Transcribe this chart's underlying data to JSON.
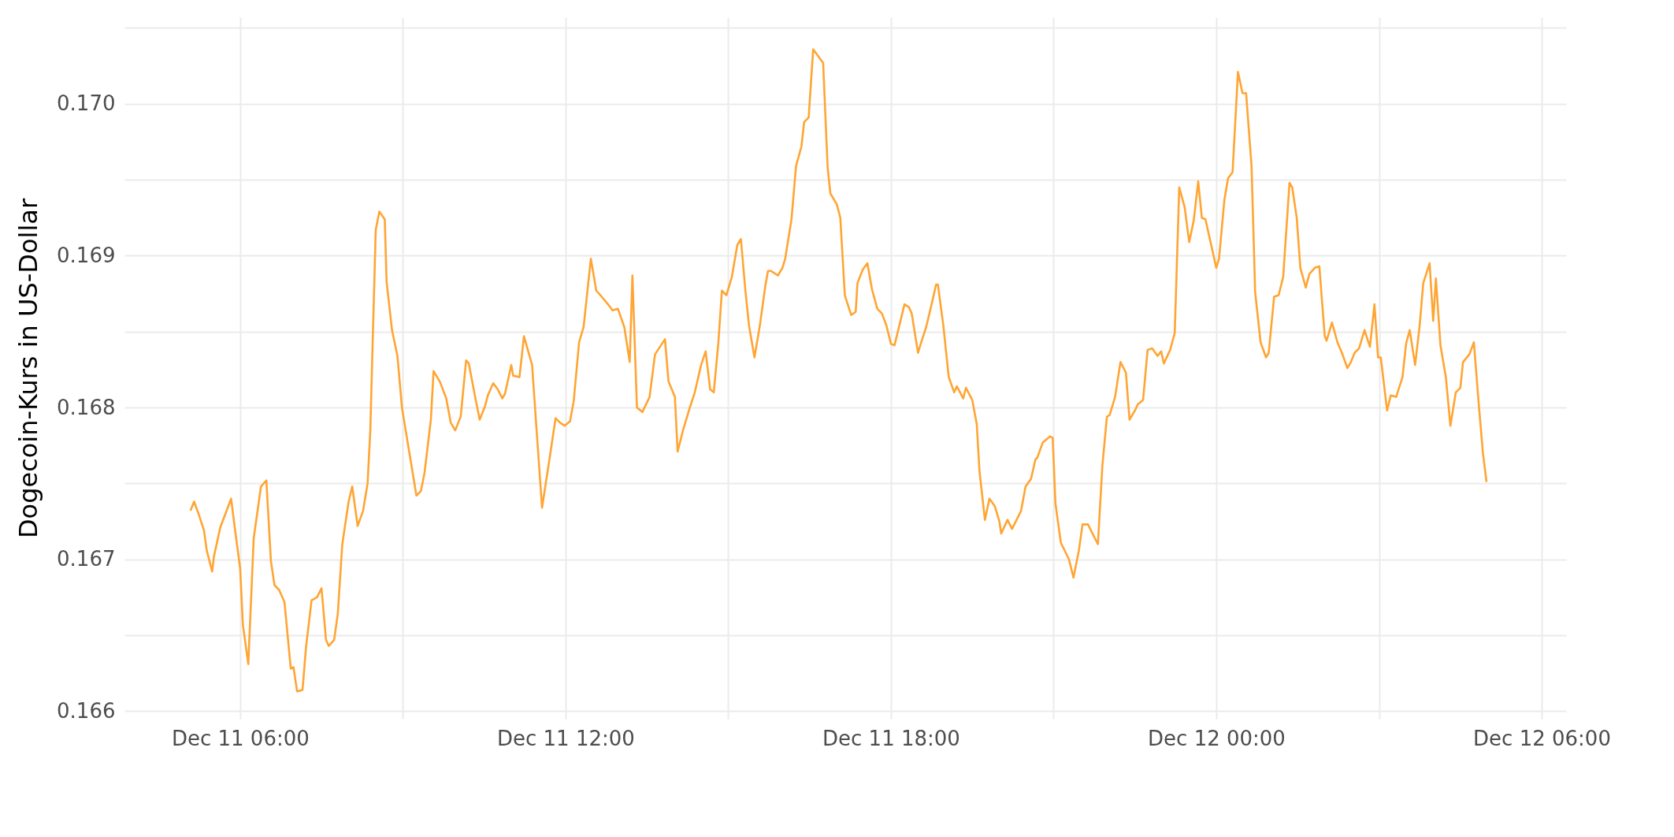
{
  "chart_data": {
    "type": "line",
    "ylabel": "Dogecoin-Kurs in US-Dollar",
    "xlim": [
      "--12-11T03:52",
      "--12-12T06:27"
    ],
    "xticks": [
      {
        "value": "--12-11T06:00",
        "label": "Dec 11 06:00"
      },
      {
        "value": "--12-11T09:00",
        "label": null
      },
      {
        "value": "--12-11T12:00",
        "label": "Dec 11 12:00"
      },
      {
        "value": "--12-11T15:00",
        "label": null
      },
      {
        "value": "--12-11T18:00",
        "label": "Dec 11 18:00"
      },
      {
        "value": "--12-11T21:00",
        "label": null
      },
      {
        "value": "--12-12T00:00",
        "label": "Dec 12 00:00"
      },
      {
        "value": "--12-12T03:00",
        "label": null
      },
      {
        "value": "--12-12T06:00",
        "label": "Dec 12 06:00"
      }
    ],
    "ylim": [
      0.16595,
      0.17057
    ],
    "yticks": [
      {
        "value": 0.166,
        "label": "0.166"
      },
      {
        "value": 0.1665,
        "label": null
      },
      {
        "value": 0.167,
        "label": "0.167"
      },
      {
        "value": 0.1675,
        "label": null
      },
      {
        "value": 0.168,
        "label": "0.168"
      },
      {
        "value": 0.1685,
        "label": null
      },
      {
        "value": 0.169,
        "label": "0.169"
      },
      {
        "value": 0.1695,
        "label": null
      },
      {
        "value": 0.17,
        "label": "0.170"
      },
      {
        "value": 0.1705,
        "label": null
      }
    ],
    "grid": true,
    "series": [
      {
        "color": "#ffa533",
        "x": [
          "--12-11T05:05",
          "--12-11T05:09",
          "--12-11T05:14",
          "--12-11T05:20",
          "--12-11T05:23",
          "--12-11T05:29",
          "--12-11T05:31",
          "--12-11T05:38",
          "--12-11T05:50",
          "--12-11T05:54",
          "--12-11T06:00",
          "--12-11T06:03",
          "--12-11T06:09",
          "--12-11T06:15",
          "--12-11T06:20",
          "--12-11T06:23",
          "--12-11T06:29",
          "--12-11T06:34",
          "--12-11T06:38",
          "--12-11T06:43",
          "--12-11T06:49",
          "--12-11T06:56",
          "--12-11T06:59",
          "--12-11T07:03",
          "--12-11T07:09",
          "--12-11T07:13",
          "--12-11T07:19",
          "--12-11T07:25",
          "--12-11T07:30",
          "--12-11T07:35",
          "--12-11T07:38",
          "--12-11T07:44",
          "--12-11T07:48",
          "--12-11T07:53",
          "--12-11T08:00",
          "--12-11T08:04",
          "--12-11T08:10",
          "--12-11T08:16",
          "--12-11T08:21",
          "--12-11T08:24",
          "--12-11T08:30",
          "--12-11T08:34",
          "--12-11T08:40",
          "--12-11T08:42",
          "--12-11T08:48",
          "--12-11T08:54",
          "--12-11T08:59",
          "--12-11T09:07",
          "--12-11T09:15",
          "--12-11T09:20",
          "--12-11T09:24",
          "--12-11T09:31",
          "--12-11T09:34",
          "--12-11T09:41",
          "--12-11T09:48",
          "--12-11T09:53",
          "--12-11T09:58",
          "--12-11T10:04",
          "--12-11T10:10",
          "--12-11T10:13",
          "--12-11T10:19",
          "--12-11T10:25",
          "--12-11T10:31",
          "--12-11T10:34",
          "--12-11T10:40",
          "--12-11T10:45",
          "--12-11T10:50",
          "--12-11T10:53",
          "--12-11T11:00",
          "--12-11T11:02",
          "--12-11T11:09",
          "--12-11T11:14",
          "--12-11T11:23",
          "--12-11T11:28",
          "--12-11T11:34",
          "--12-11T11:43",
          "--12-11T11:49",
          "--12-11T11:54",
          "--12-11T11:59",
          "--12-11T12:05",
          "--12-11T12:09",
          "--12-11T12:15",
          "--12-11T12:20",
          "--12-11T12:28",
          "--12-11T12:34",
          "--12-11T12:40",
          "--12-11T12:47",
          "--12-11T12:52",
          "--12-11T12:58",
          "--12-11T13:05",
          "--12-11T13:11",
          "--12-11T13:14",
          "--12-11T13:19",
          "--12-11T13:25",
          "--12-11T13:33",
          "--12-11T13:39",
          "--12-11T13:50",
          "--12-11T13:54",
          "--12-11T14:01",
          "--12-11T14:04",
          "--12-11T14:10",
          "--12-11T14:17",
          "--12-11T14:23",
          "--12-11T14:30",
          "--12-11T14:35",
          "--12-11T14:40",
          "--12-11T14:44",
          "--12-11T14:49",
          "--12-11T14:53",
          "--12-11T14:58",
          "--12-11T15:04",
          "--12-11T15:10",
          "--12-11T15:14",
          "--12-11T15:19",
          "--12-11T15:23",
          "--12-11T15:29",
          "--12-11T15:35",
          "--12-11T15:41",
          "--12-11T15:44",
          "--12-11T15:47",
          "--12-11T15:55",
          "--12-11T16:00",
          "--12-11T16:03",
          "--12-11T16:10",
          "--12-11T16:15",
          "--12-11T16:21",
          "--12-11T16:24",
          "--12-11T16:29",
          "--12-11T16:34",
          "--12-11T16:40",
          "--12-11T16:45",
          "--12-11T16:50",
          "--12-11T16:53",
          "--12-11T17:00",
          "--12-11T17:04",
          "--12-11T17:09",
          "--12-11T17:16",
          "--12-11T17:21",
          "--12-11T17:23",
          "--12-11T17:29",
          "--12-11T17:34",
          "--12-11T17:39",
          "--12-11T17:45",
          "--12-11T17:50",
          "--12-11T17:55",
          "--12-11T18:00",
          "--12-11T18:04",
          "--12-11T18:15",
          "--12-11T18:20",
          "--12-11T18:23",
          "--12-11T18:30",
          "--12-11T18:33",
          "--12-11T18:39",
          "--12-11T18:45",
          "--12-11T18:50",
          "--12-11T18:52",
          "--12-11T18:58",
          "--12-11T19:04",
          "--12-11T19:10",
          "--12-11T19:13",
          "--12-11T19:20",
          "--12-11T19:23",
          "--12-11T19:30",
          "--12-11T19:35",
          "--12-11T19:38",
          "--12-11T19:44",
          "--12-11T19:49",
          "--12-11T19:55",
          "--12-11T20:00",
          "--12-11T20:02",
          "--12-11T20:09",
          "--12-11T20:14",
          "--12-11T20:24",
          "--12-11T20:29",
          "--12-11T20:35",
          "--12-11T20:40",
          "--12-11T20:42",
          "--12-11T20:48",
          "--12-11T20:56",
          "--12-11T20:59",
          "--12-11T21:02",
          "--12-11T21:08",
          "--12-11T21:17",
          "--12-11T21:22",
          "--12-11T21:28",
          "--12-11T21:32",
          "--12-11T21:38",
          "--12-11T21:49",
          "--12-11T21:54",
          "--12-11T21:59",
          "--12-11T22:02",
          "--12-11T22:08",
          "--12-11T22:14",
          "--12-11T22:20",
          "--12-11T22:24",
          "--12-11T22:30",
          "--12-11T22:33",
          "--12-11T22:39",
          "--12-11T22:44",
          "--12-11T22:49",
          "--12-11T22:55",
          "--12-11T22:59",
          "--12-11T23:02",
          "--12-11T23:09",
          "--12-11T23:14",
          "--12-11T23:19",
          "--12-11T23:25",
          "--12-11T23:30",
          "--12-11T23:35",
          "--12-11T23:40",
          "--12-11T23:44",
          "--12-11T23:48",
          "--12-12T00:00",
          "--12-12T00:03",
          "--12-12T00:09",
          "--12-12T00:13",
          "--12-12T00:18",
          "--12-12T00:24",
          "--12-12T00:29",
          "--12-12T00:33",
          "--12-12T00:39",
          "--12-12T00:43",
          "--12-12T00:49",
          "--12-12T00:55",
          "--12-12T00:58",
          "--12-12T01:04",
          "--12-12T01:09",
          "--12-12T01:14",
          "--12-12T01:21",
          "--12-12T01:24",
          "--12-12T01:29",
          "--12-12T01:33",
          "--12-12T01:39",
          "--12-12T01:43",
          "--12-12T01:49",
          "--12-12T01:54",
          "--12-12T02:00",
          "--12-12T02:02",
          "--12-12T02:08",
          "--12-12T02:14",
          "--12-12T02:19",
          "--12-12T02:25",
          "--12-12T02:29",
          "--12-12T02:33",
          "--12-12T02:38",
          "--12-12T02:44",
          "--12-12T02:50",
          "--12-12T02:55",
          "--12-12T02:59",
          "--12-12T03:02",
          "--12-12T03:09",
          "--12-12T03:13",
          "--12-12T03:19",
          "--12-12T03:26",
          "--12-12T03:30",
          "--12-12T03:34",
          "--12-12T03:40",
          "--12-12T03:45",
          "--12-12T03:49",
          "--12-12T03:56",
          "--12-12T04:00",
          "--12-12T04:03",
          "--12-12T04:08",
          "--12-12T04:14",
          "--12-12T04:19",
          "--12-12T04:25",
          "--12-12T04:30",
          "--12-12T04:33",
          "--12-12T04:40",
          "--12-12T04:45",
          "--12-12T04:50",
          "--12-12T04:55",
          "--12-12T04:59"
        ],
        "values": [
          0.16732,
          0.16738,
          0.1673,
          0.16719,
          0.16706,
          0.16692,
          0.16702,
          0.16721,
          0.1674,
          0.16721,
          0.16694,
          0.16657,
          0.16631,
          0.16714,
          0.16735,
          0.16748,
          0.16752,
          0.16699,
          0.16683,
          0.1668,
          0.16672,
          0.16628,
          0.16629,
          0.16613,
          0.16614,
          0.16643,
          0.16673,
          0.16675,
          0.16681,
          0.16647,
          0.16643,
          0.16647,
          0.16664,
          0.1671,
          0.16738,
          0.16748,
          0.16722,
          0.16732,
          0.1675,
          0.16785,
          0.16917,
          0.16929,
          0.16924,
          0.16883,
          0.16851,
          0.16834,
          0.168,
          0.16771,
          0.16742,
          0.16745,
          0.16757,
          0.16792,
          0.16824,
          0.16817,
          0.16806,
          0.1679,
          0.16785,
          0.16794,
          0.16831,
          0.16829,
          0.1681,
          0.16792,
          0.16801,
          0.16808,
          0.16816,
          0.16812,
          0.16806,
          0.16809,
          0.16828,
          0.16821,
          0.1682,
          0.16847,
          0.16828,
          0.16785,
          0.16734,
          0.16769,
          0.16793,
          0.1679,
          0.16788,
          0.16791,
          0.16804,
          0.16843,
          0.16853,
          0.16898,
          0.16877,
          0.16873,
          0.16868,
          0.16864,
          0.16865,
          0.16853,
          0.1683,
          0.16887,
          0.168,
          0.16797,
          0.16807,
          0.16835,
          0.16845,
          0.16817,
          0.16807,
          0.16771,
          0.16785,
          0.16799,
          0.1681,
          0.16828,
          0.16837,
          0.16812,
          0.1681,
          0.16842,
          0.16877,
          0.16874,
          0.16886,
          0.16907,
          0.16911,
          0.16877,
          0.16854,
          0.16833,
          0.16854,
          0.1688,
          0.1689,
          0.1689,
          0.16887,
          0.16892,
          0.16898,
          0.16924,
          0.16959,
          0.16972,
          0.16988,
          0.16991,
          0.17036,
          0.17031,
          0.17027,
          0.16958,
          0.16941,
          0.16934,
          0.16925,
          0.16874,
          0.16861,
          0.16863,
          0.16882,
          0.16891,
          0.16895,
          0.16878,
          0.16865,
          0.16862,
          0.16854,
          0.16842,
          0.16841,
          0.16868,
          0.16866,
          0.16862,
          0.16836,
          0.16842,
          0.16853,
          0.16868,
          0.16881,
          0.16881,
          0.16854,
          0.1682,
          0.1681,
          0.16814,
          0.16806,
          0.16813,
          0.16805,
          0.16789,
          0.16758,
          0.16726,
          0.1674,
          0.16735,
          0.16725,
          0.16717,
          0.16726,
          0.1672,
          0.16732,
          0.16748,
          0.16753,
          0.16766,
          0.16767,
          0.16777,
          0.16781,
          0.1678,
          0.16737,
          0.16711,
          0.167,
          0.16688,
          0.16706,
          0.16723,
          0.16723,
          0.1671,
          0.16762,
          0.16794,
          0.16795,
          0.16807,
          0.1683,
          0.16823,
          0.16792,
          0.16798,
          0.16802,
          0.16805,
          0.16838,
          0.16839,
          0.16834,
          0.16837,
          0.16829,
          0.16838,
          0.16849,
          0.16945,
          0.16932,
          0.16909,
          0.16923,
          0.16949,
          0.16925,
          0.16924,
          0.16892,
          0.16898,
          0.16937,
          0.16951,
          0.16955,
          0.17021,
          0.17007,
          0.17007,
          0.16959,
          0.16876,
          0.16843,
          0.16833,
          0.16836,
          0.16873,
          0.16874,
          0.16886,
          0.16948,
          0.16945,
          0.16925,
          0.16892,
          0.16879,
          0.16888,
          0.16892,
          0.16893,
          0.16847,
          0.16844,
          0.16856,
          0.16843,
          0.16836,
          0.16826,
          0.1683,
          0.16836,
          0.16839,
          0.16851,
          0.1684,
          0.16868,
          0.16833,
          0.16833,
          0.16798,
          0.16808,
          0.16807,
          0.1682,
          0.16842,
          0.16851,
          0.16828,
          0.16854,
          0.16882,
          0.16895,
          0.16857,
          0.16885,
          0.16841,
          0.1682,
          0.16788,
          0.1681,
          0.16813,
          0.1683,
          0.16835,
          0.16843,
          0.16805,
          0.1677,
          0.16751
        ]
      }
    ]
  }
}
